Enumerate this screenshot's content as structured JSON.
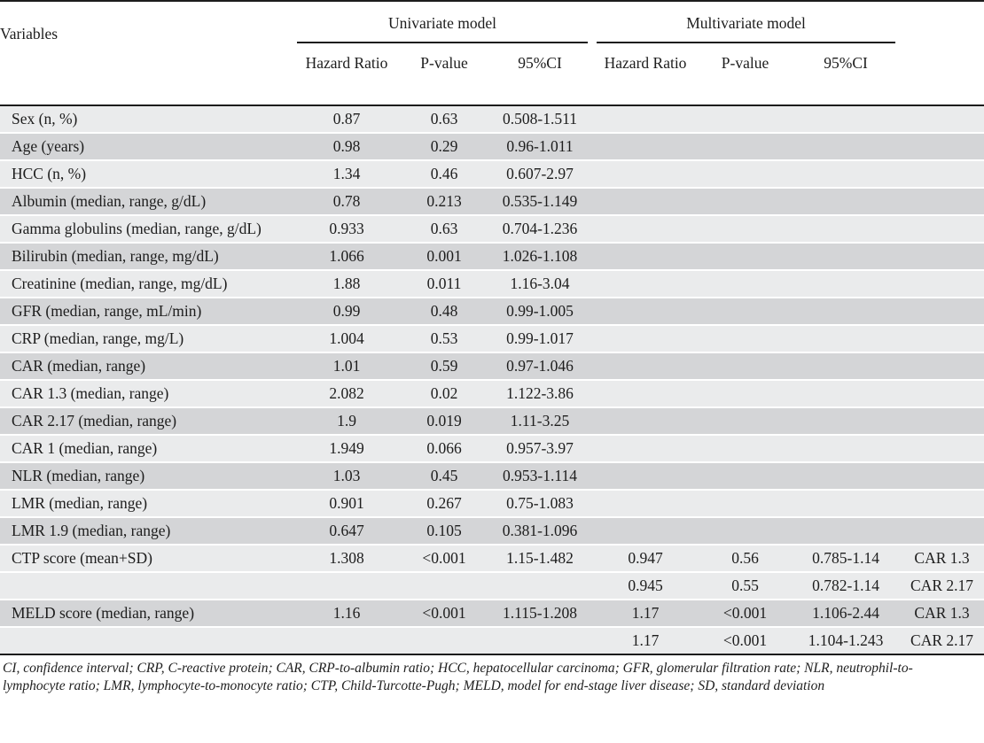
{
  "colors": {
    "stripe_light": "#eaebec",
    "stripe_dark": "#d4d5d7",
    "rule": "#1c1c1c",
    "text": "#1d1d1d"
  },
  "header": {
    "variables": "Variables",
    "univariate": "Univariate model",
    "multivariate": "Multivariate model",
    "uni_sub": [
      "Hazard Ratio",
      "P-value",
      "95%CI"
    ],
    "multi_sub": [
      "Hazard Ratio",
      "P-value",
      "95%CI"
    ]
  },
  "table": {
    "rows": [
      {
        "variable": "Sex (n, %)",
        "uni_hr": "0.87",
        "uni_p": "0.63",
        "uni_ci": "0.508-1.511",
        "multi_hr": "",
        "multi_p": "",
        "multi_ci": "",
        "model": "",
        "shade": "light"
      },
      {
        "variable": "Age (years)",
        "uni_hr": "0.98",
        "uni_p": "0.29",
        "uni_ci": "0.96-1.011",
        "multi_hr": "",
        "multi_p": "",
        "multi_ci": "",
        "model": "",
        "shade": "dark"
      },
      {
        "variable": "HCC (n, %)",
        "uni_hr": "1.34",
        "uni_p": "0.46",
        "uni_ci": "0.607-2.97",
        "multi_hr": "",
        "multi_p": "",
        "multi_ci": "",
        "model": "",
        "shade": "light"
      },
      {
        "variable": "Albumin (median, range, g/dL)",
        "uni_hr": "0.78",
        "uni_p": "0.213",
        "uni_ci": "0.535-1.149",
        "multi_hr": "",
        "multi_p": "",
        "multi_ci": "",
        "model": "",
        "shade": "dark"
      },
      {
        "variable": "Gamma globulins (median, range, g/dL)",
        "uni_hr": "0.933",
        "uni_p": "0.63",
        "uni_ci": "0.704-1.236",
        "multi_hr": "",
        "multi_p": "",
        "multi_ci": "",
        "model": "",
        "shade": "light"
      },
      {
        "variable": "Bilirubin (median, range, mg/dL)",
        "uni_hr": "1.066",
        "uni_p": "0.001",
        "uni_ci": "1.026-1.108",
        "multi_hr": "",
        "multi_p": "",
        "multi_ci": "",
        "model": "",
        "shade": "dark"
      },
      {
        "variable": "Creatinine (median, range, mg/dL)",
        "uni_hr": "1.88",
        "uni_p": "0.011",
        "uni_ci": "1.16-3.04",
        "multi_hr": "",
        "multi_p": "",
        "multi_ci": "",
        "model": "",
        "shade": "light"
      },
      {
        "variable": "GFR (median, range, mL/min)",
        "uni_hr": "0.99",
        "uni_p": "0.48",
        "uni_ci": "0.99-1.005",
        "multi_hr": "",
        "multi_p": "",
        "multi_ci": "",
        "model": "",
        "shade": "dark"
      },
      {
        "variable": "CRP (median, range, mg/L)",
        "uni_hr": "1.004",
        "uni_p": "0.53",
        "uni_ci": "0.99-1.017",
        "multi_hr": "",
        "multi_p": "",
        "multi_ci": "",
        "model": "",
        "shade": "light"
      },
      {
        "variable": "CAR (median, range)",
        "uni_hr": "1.01",
        "uni_p": "0.59",
        "uni_ci": "0.97-1.046",
        "multi_hr": "",
        "multi_p": "",
        "multi_ci": "",
        "model": "",
        "shade": "dark"
      },
      {
        "variable": "CAR 1.3 (median, range)",
        "uni_hr": "2.082",
        "uni_p": "0.02",
        "uni_ci": "1.122-3.86",
        "multi_hr": "",
        "multi_p": "",
        "multi_ci": "",
        "model": "",
        "shade": "light"
      },
      {
        "variable": "CAR 2.17 (median, range)",
        "uni_hr": "1.9",
        "uni_p": "0.019",
        "uni_ci": "1.11-3.25",
        "multi_hr": "",
        "multi_p": "",
        "multi_ci": "",
        "model": "",
        "shade": "dark"
      },
      {
        "variable": "CAR 1 (median, range)",
        "uni_hr": "1.949",
        "uni_p": "0.066",
        "uni_ci": "0.957-3.97",
        "multi_hr": "",
        "multi_p": "",
        "multi_ci": "",
        "model": "",
        "shade": "light"
      },
      {
        "variable": "NLR (median, range)",
        "uni_hr": "1.03",
        "uni_p": "0.45",
        "uni_ci": "0.953-1.114",
        "multi_hr": "",
        "multi_p": "",
        "multi_ci": "",
        "model": "",
        "shade": "dark"
      },
      {
        "variable": "LMR (median, range)",
        "uni_hr": "0.901",
        "uni_p": "0.267",
        "uni_ci": "0.75-1.083",
        "multi_hr": "",
        "multi_p": "",
        "multi_ci": "",
        "model": "",
        "shade": "light"
      },
      {
        "variable": "LMR 1.9 (median, range)",
        "uni_hr": "0.647",
        "uni_p": "0.105",
        "uni_ci": "0.381-1.096",
        "multi_hr": "",
        "multi_p": "",
        "multi_ci": "",
        "model": "",
        "shade": "dark"
      },
      {
        "variable": "CTP score (mean+SD)",
        "uni_hr": "1.308",
        "uni_p": "<0.001",
        "uni_ci": "1.15-1.482",
        "multi_hr": "0.947",
        "multi_p": "0.56",
        "multi_ci": "0.785-1.14",
        "model": "CAR 1.3",
        "shade": "light"
      },
      {
        "variable": "",
        "uni_hr": "",
        "uni_p": "",
        "uni_ci": "",
        "multi_hr": "0.945",
        "multi_p": "0.55",
        "multi_ci": "0.782-1.14",
        "model": "CAR 2.17",
        "shade": "light"
      },
      {
        "variable": "MELD score (median, range)",
        "uni_hr": "1.16",
        "uni_p": "<0.001",
        "uni_ci": "1.115-1.208",
        "multi_hr": "1.17",
        "multi_p": "<0.001",
        "multi_ci": "1.106-2.44",
        "model": "CAR 1.3",
        "shade": "dark"
      },
      {
        "variable": "",
        "uni_hr": "",
        "uni_p": "",
        "uni_ci": "",
        "multi_hr": "1.17",
        "multi_p": "<0.001",
        "multi_ci": "1.104-1.243",
        "model": "CAR 2.17",
        "shade": "light"
      }
    ]
  },
  "footnote": {
    "line1": "CI, confidence interval; CRP, C-reactive protein; CAR, CRP-to-albumin ratio; HCC, hepatocellular carcinoma; GFR, glomerular filtration rate; NLR, neutrophil-to-",
    "line2": "lymphocyte ratio; LMR, lymphocyte-to-monocyte ratio; CTP, Child-Turcotte-Pugh; MELD, model for end-stage liver disease; SD, standard deviation"
  }
}
